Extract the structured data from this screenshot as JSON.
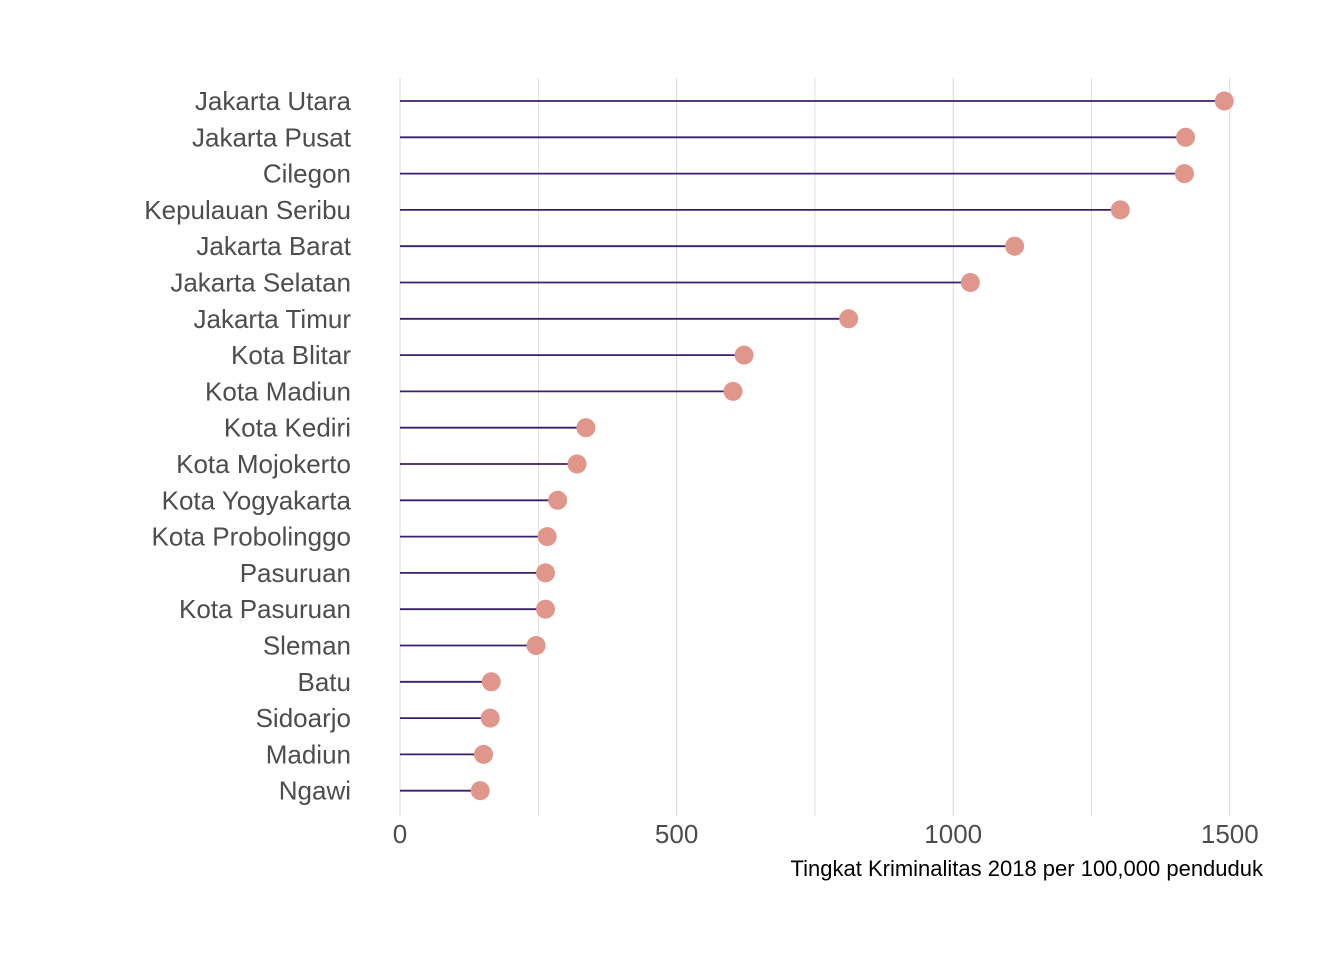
{
  "chart_data": {
    "type": "lollipop",
    "orientation": "horizontal",
    "title": "",
    "xlabel": "Tingkat Kriminalitas 2018 per 100,000 penduduk",
    "ylabel": "",
    "xlim": [
      0,
      1560
    ],
    "xticks": [
      0,
      500,
      1000,
      1500
    ],
    "xtick_labels": [
      "0",
      "500",
      "1000",
      "1500"
    ],
    "minor_gridlines": [
      250,
      750,
      1250
    ],
    "grid": "vertical",
    "legend": "none",
    "categories": [
      "Jakarta Utara",
      "Jakarta Pusat",
      "Cilegon",
      "Kepulauan Seribu",
      "Jakarta Barat",
      "Jakarta Selatan",
      "Jakarta Timur",
      "Kota Blitar",
      "Kota Madiun",
      "Kota Kediri",
      "Kota Mojokerto",
      "Kota Yogyakarta",
      "Kota Probolinggo",
      "Pasuruan",
      "Kota Pasuruan",
      "Sleman",
      "Batu",
      "Sidoarjo",
      "Madiun",
      "Ngawi"
    ],
    "values": [
      1490,
      1420,
      1418,
      1302,
      1111,
      1031,
      811,
      622,
      602,
      336,
      320,
      285,
      266,
      263,
      263,
      246,
      165,
      163,
      151,
      145
    ],
    "colors": {
      "stem": "#3b1f6b",
      "dot": "#e0968a",
      "grid": "#d9d9d9"
    }
  }
}
